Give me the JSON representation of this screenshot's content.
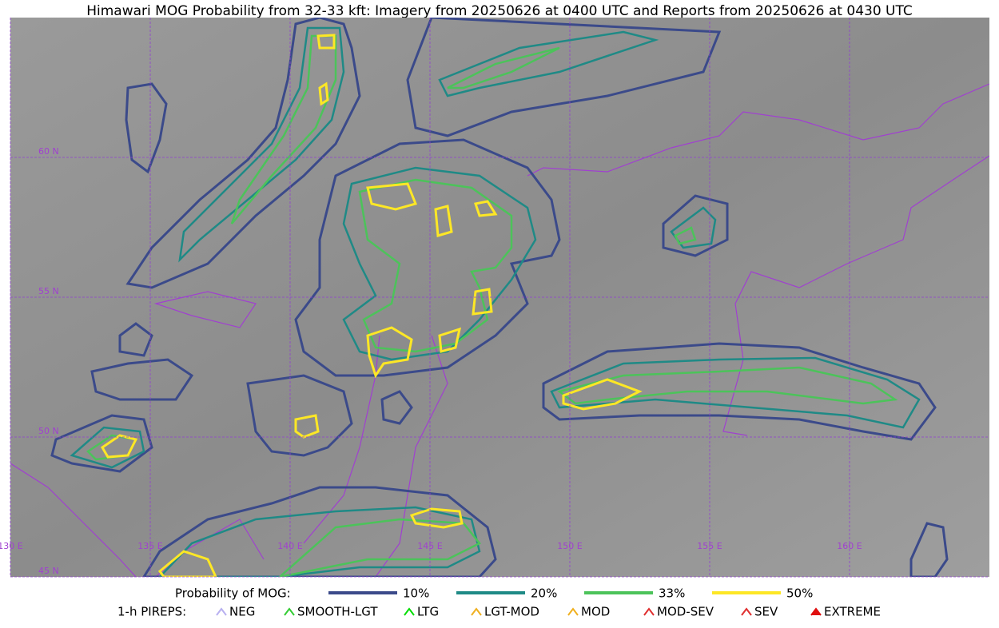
{
  "title": "Himawari MOG Probability from 32-33 kft: Imagery from 20250626 at 0400 UTC and Reports from 20250626 at 0430 UTC",
  "map": {
    "longitudes": [
      "130 E",
      "135 E",
      "140 E",
      "145 E",
      "150 E",
      "155 E",
      "160 E"
    ],
    "latitudes": [
      "60 N",
      "55 N",
      "50 N",
      "45 N"
    ]
  },
  "legend": {
    "probability_title": "Probability of MOG:",
    "probability": [
      {
        "label": "10%",
        "color": "#3b4a8a"
      },
      {
        "label": "20%",
        "color": "#1f8a86"
      },
      {
        "label": "33%",
        "color": "#4cc35a"
      },
      {
        "label": "50%",
        "color": "#fde725"
      }
    ],
    "pireps_title": "1-h PIREPS:",
    "pireps": [
      {
        "label": "NEG",
        "color": "#b8b0f0"
      },
      {
        "label": "SMOOTH-LGT",
        "color": "#33cc33"
      },
      {
        "label": "LTG",
        "color": "#00dd00"
      },
      {
        "label": "LGT-MOD",
        "color": "#f0b020"
      },
      {
        "label": "MOD",
        "color": "#f0b020"
      },
      {
        "label": "MOD-SEV",
        "color": "#e03030"
      },
      {
        "label": "SEV",
        "color": "#e03030"
      },
      {
        "label": "EXTREME",
        "color": "#e01010"
      }
    ]
  }
}
